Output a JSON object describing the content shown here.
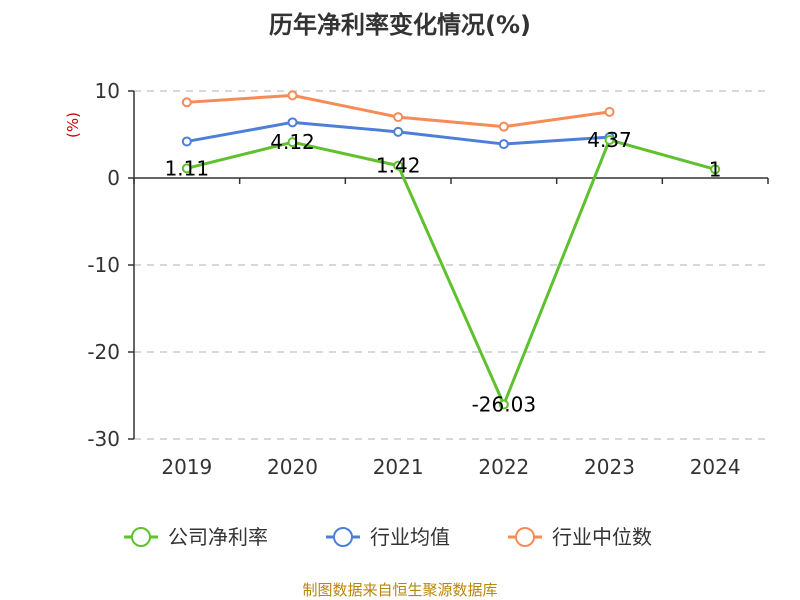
{
  "chart_data": {
    "type": "line",
    "title": "历年净利率变化情况(%)",
    "ylabel": "(%)",
    "categories": [
      "2019",
      "2020",
      "2021",
      "2022",
      "2023",
      "2024"
    ],
    "ylim": [
      -30,
      10
    ],
    "yticks": [
      10,
      0,
      -10,
      -20,
      -30
    ],
    "grid": true,
    "legend_position": "bottom",
    "series": [
      {
        "name": "公司净利率",
        "color": "#5fc12e",
        "values": [
          1.11,
          4.12,
          1.42,
          -26.03,
          4.37,
          1
        ],
        "labels": [
          "1.11",
          "4.12",
          "1.42",
          "-26.03",
          "4.37",
          "1"
        ]
      },
      {
        "name": "行业均值",
        "color": "#4e7fd8",
        "values": [
          4.2,
          6.4,
          5.3,
          3.9,
          4.7,
          null
        ]
      },
      {
        "name": "行业中位数",
        "color": "#f68b58",
        "values": [
          8.7,
          9.5,
          7.0,
          5.9,
          7.6,
          null
        ]
      }
    ]
  },
  "source": "制图数据来自恒生聚源数据库"
}
